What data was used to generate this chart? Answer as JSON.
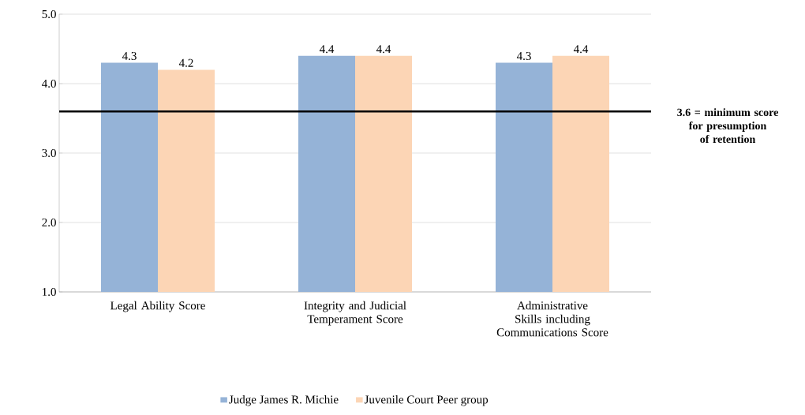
{
  "chart_data": {
    "type": "bar",
    "categories": [
      "Legal Ability Score",
      "Integrity and Judicial Temperament Score",
      "Administrative Skills including Communications Score"
    ],
    "series": [
      {
        "name": "Judge James R. Michie",
        "color": "#95b3d7",
        "values": [
          4.3,
          4.4,
          4.3
        ]
      },
      {
        "name": "Juvenile Court Peer group",
        "color": "#fcd5b5",
        "values": [
          4.2,
          4.4,
          4.4
        ]
      }
    ],
    "ylim": [
      1,
      5
    ],
    "yticks": [
      {
        "value": 1,
        "label": "1.0"
      },
      {
        "value": 2,
        "label": "2.0"
      },
      {
        "value": 3,
        "label": "3.0"
      },
      {
        "value": 4,
        "label": "4.0"
      },
      {
        "value": 5,
        "label": "5.0"
      }
    ],
    "grid": "y",
    "legend": "bottom",
    "data_labels": true,
    "ref_lines": [
      {
        "axis": "y",
        "value": 3.6,
        "label": "3.6 = minimum score for presumption of retention",
        "color": "#000000"
      }
    ]
  }
}
